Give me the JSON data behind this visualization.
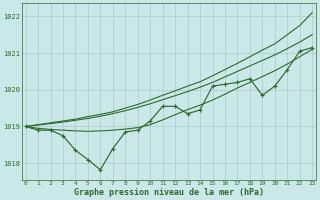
{
  "xlabel": "Graphe pression niveau de la mer (hPa)",
  "background_color": "#cbe8e8",
  "plot_bg_color": "#cbe8e8",
  "grid_color": "#aacccc",
  "line_color": "#2d6a2d",
  "text_color": "#2d6a2d",
  "xlim": [
    -0.3,
    23.3
  ],
  "ylim": [
    1017.55,
    1022.35
  ],
  "yticks": [
    1018,
    1019,
    1020,
    1021,
    1022
  ],
  "xticks": [
    0,
    1,
    2,
    3,
    4,
    5,
    6,
    7,
    8,
    9,
    10,
    11,
    12,
    13,
    14,
    15,
    16,
    17,
    18,
    19,
    20,
    21,
    22,
    23
  ],
  "series_zigzag": [
    1019.0,
    1018.9,
    1018.9,
    1018.75,
    1018.35,
    1018.1,
    1017.82,
    1018.4,
    1018.85,
    1018.9,
    1019.15,
    1019.55,
    1019.55,
    1019.35,
    1019.45,
    1020.1,
    1020.15,
    1020.2,
    1020.3,
    1019.85,
    1020.1,
    1020.55,
    1021.05,
    1021.15
  ],
  "series_smooth": [
    1019.0,
    1018.95,
    1018.92,
    1018.9,
    1018.88,
    1018.87,
    1018.88,
    1018.9,
    1018.93,
    1018.97,
    1019.05,
    1019.18,
    1019.32,
    1019.46,
    1019.58,
    1019.72,
    1019.88,
    1020.05,
    1020.2,
    1020.36,
    1020.52,
    1020.7,
    1020.9,
    1021.1
  ],
  "series_upper": [
    1019.0,
    1019.05,
    1019.1,
    1019.15,
    1019.2,
    1019.27,
    1019.33,
    1019.4,
    1019.5,
    1019.6,
    1019.72,
    1019.85,
    1019.97,
    1020.1,
    1020.22,
    1020.38,
    1020.55,
    1020.72,
    1020.9,
    1021.08,
    1021.25,
    1021.5,
    1021.75,
    1022.1
  ],
  "series_straight": [
    1019.0,
    1019.04,
    1019.08,
    1019.12,
    1019.17,
    1019.22,
    1019.28,
    1019.35,
    1019.43,
    1019.52,
    1019.62,
    1019.73,
    1019.84,
    1019.95,
    1020.07,
    1020.2,
    1020.35,
    1020.5,
    1020.65,
    1020.8,
    1020.95,
    1021.12,
    1021.3,
    1021.5
  ]
}
